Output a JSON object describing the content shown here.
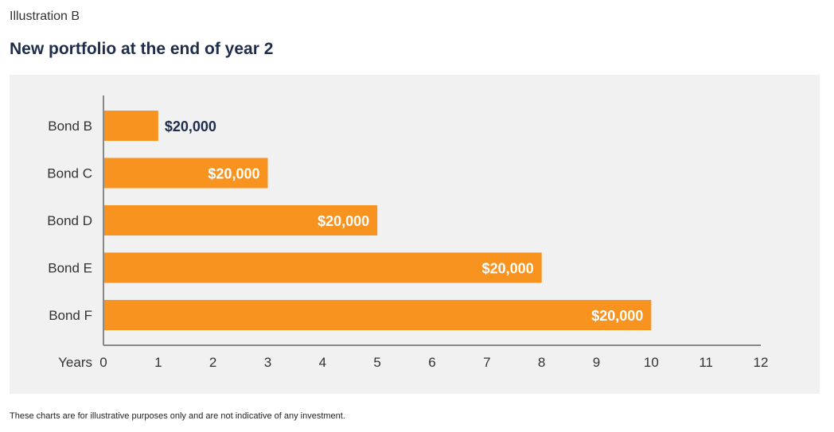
{
  "header": {
    "eyebrow": "Illustration B",
    "title": "New portfolio at the end of year 2"
  },
  "footnote": "These charts are for illustrative purposes only and are not indicative of any investment.",
  "colors": {
    "bar": "#f7931e",
    "panel": "#f1f1f1",
    "axis": "#888888",
    "label_outside": "#1f2d4d",
    "label_inside": "#ffffff"
  },
  "chart_data": {
    "type": "bar",
    "orientation": "horizontal",
    "categories": [
      "Bond B",
      "Bond C",
      "Bond D",
      "Bond E",
      "Bond F"
    ],
    "values": [
      1,
      3,
      5,
      8,
      10
    ],
    "data_labels": [
      "$20,000",
      "$20,000",
      "$20,000",
      "$20,000",
      "$20,000"
    ],
    "xlabel": "Years",
    "xlim": [
      0,
      12
    ],
    "xticks": [
      0,
      1,
      2,
      3,
      4,
      5,
      6,
      7,
      8,
      9,
      10,
      11,
      12
    ],
    "grid": false,
    "legend": "none"
  }
}
